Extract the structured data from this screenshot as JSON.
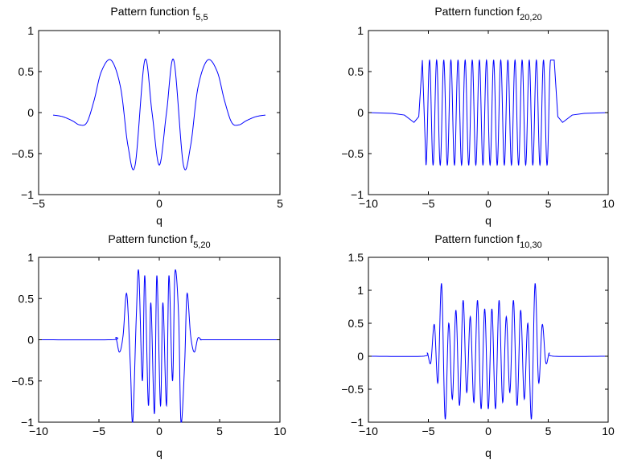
{
  "chart_data": [
    {
      "type": "line",
      "title_base": "Pattern function f",
      "title_sub": "5,5",
      "xlabel": "q",
      "ylabel": "",
      "xlim": [
        -5,
        5
      ],
      "ylim": [
        -1,
        1
      ],
      "xticks": [
        -5,
        0,
        5
      ],
      "yticks": [
        -1,
        -0.5,
        0,
        0.5,
        1
      ],
      "xtick_labels": [
        "−5",
        "0",
        "5"
      ],
      "ytick_labels": [
        "−1",
        "−0.5",
        "0",
        "0.5",
        "1"
      ],
      "series_color": "#0000ff",
      "x": [
        -4.4,
        -4.0,
        -3.6,
        -3.3,
        -3.0,
        -2.7,
        -2.4,
        -2.0,
        -1.6,
        -1.3,
        -1.0,
        -0.6,
        -0.3,
        0.0,
        0.3,
        0.6,
        1.0,
        1.3,
        1.6,
        2.0,
        2.4,
        2.7,
        3.0,
        3.3,
        3.6,
        4.0,
        4.4
      ],
      "y": [
        -0.03,
        -0.05,
        -0.1,
        -0.15,
        -0.12,
        0.15,
        0.5,
        0.64,
        0.3,
        -0.4,
        -0.64,
        0.64,
        0.0,
        -0.64,
        0.0,
        0.64,
        -0.64,
        -0.4,
        0.3,
        0.64,
        0.5,
        0.15,
        -0.12,
        -0.15,
        -0.1,
        -0.05,
        -0.03
      ]
    },
    {
      "type": "line",
      "title_base": "Pattern function f",
      "title_sub": "20,20",
      "xlabel": "q",
      "ylabel": "",
      "xlim": [
        -10,
        10
      ],
      "ylim": [
        -1,
        1
      ],
      "xticks": [
        -10,
        -5,
        0,
        5,
        10
      ],
      "yticks": [
        -1,
        -0.5,
        0,
        0.5,
        1
      ],
      "xtick_labels": [
        "−10",
        "−5",
        "0",
        "5",
        "10"
      ],
      "ytick_labels": [
        "−1",
        "−0.5",
        "0",
        "0.5",
        "1"
      ],
      "series_color": "#0000ff",
      "x": [
        -10,
        -8,
        -7,
        -6.2,
        -5.8,
        -5.5,
        -5.2,
        -4.9,
        4.9,
        5.2,
        5.5,
        5.8,
        6.2,
        7,
        8,
        10
      ],
      "y": [
        0.0,
        -0.01,
        -0.03,
        -0.12,
        -0.05,
        0.64,
        -0.64,
        0.64,
        0.64,
        -0.64,
        0.64,
        -0.05,
        -0.12,
        -0.03,
        -0.01,
        0.0
      ],
      "oscillation": {
        "from": -5.2,
        "to": 5.2,
        "cycles": 17.5,
        "amplitude": 0.64
      }
    },
    {
      "type": "line",
      "title_base": "Pattern function f",
      "title_sub": "5,20",
      "xlabel": "q",
      "ylabel": "",
      "xlim": [
        -10,
        10
      ],
      "ylim": [
        -1,
        1
      ],
      "xticks": [
        -10,
        -5,
        0,
        5,
        10
      ],
      "yticks": [
        -1,
        -0.5,
        0,
        0.5,
        1
      ],
      "xtick_labels": [
        "−10",
        "−5",
        "0",
        "5",
        "10"
      ],
      "ytick_labels": [
        "−1",
        "−0.5",
        "0",
        "0.5",
        "1"
      ],
      "series_color": "#0000ff",
      "x": [
        -10,
        -4,
        -3.6,
        -3.3,
        -3.0,
        -2.7,
        -2.4,
        -2.2,
        -1.9,
        -1.7,
        -1.4,
        -1.2,
        -0.9,
        -0.7,
        -0.4,
        -0.2,
        0.1,
        0.3,
        0.6,
        0.8,
        1.1,
        1.3,
        1.6,
        1.8,
        2.1,
        2.3,
        2.6,
        2.9,
        3.2,
        3.5,
        4,
        10
      ],
      "y": [
        0.0,
        0.0,
        0.02,
        -0.15,
        0.05,
        0.56,
        -0.3,
        -1.0,
        0.3,
        0.82,
        -0.5,
        0.78,
        -0.8,
        0.45,
        -0.9,
        0.78,
        -0.8,
        0.45,
        -0.8,
        0.78,
        -0.5,
        0.82,
        0.3,
        -1.0,
        -0.3,
        0.56,
        0.05,
        -0.15,
        0.02,
        0.0,
        0.0,
        0.0
      ]
    },
    {
      "type": "line",
      "title_base": "Pattern function f",
      "title_sub": "10,30",
      "xlabel": "q",
      "ylabel": "",
      "xlim": [
        -10,
        10
      ],
      "ylim": [
        -1,
        1.5
      ],
      "xticks": [
        -10,
        -5,
        0,
        5,
        10
      ],
      "yticks": [
        -1,
        -0.5,
        0,
        0.5,
        1,
        1.5
      ],
      "xtick_labels": [
        "−10",
        "−5",
        "0",
        "5",
        "10"
      ],
      "ytick_labels": [
        "−1",
        "−0.5",
        "0",
        "0.5",
        "1",
        "1.5"
      ],
      "series_color": "#0000ff",
      "x": [
        -10,
        -5.5,
        -5.1,
        -4.8,
        -4.5,
        -4.2,
        -3.9,
        -3.6,
        -3.3,
        -3.0,
        -2.7,
        -2.4,
        -2.1,
        -1.8,
        -1.5,
        -1.2,
        -0.9,
        -0.6,
        -0.3,
        0.0,
        0.3,
        0.6,
        0.9,
        1.2,
        1.5,
        1.8,
        2.1,
        2.4,
        2.7,
        3.0,
        3.3,
        3.6,
        3.9,
        4.2,
        4.5,
        4.8,
        5.1,
        5.5,
        10
      ],
      "y": [
        0.0,
        0.0,
        0.05,
        -0.1,
        0.48,
        -0.4,
        1.1,
        -0.95,
        0.5,
        -0.65,
        0.7,
        -0.75,
        0.85,
        -0.55,
        0.6,
        -0.7,
        0.85,
        -0.8,
        0.72,
        -0.8,
        0.72,
        -0.8,
        0.85,
        -0.7,
        0.6,
        -0.55,
        0.85,
        -0.75,
        0.7,
        -0.65,
        0.5,
        -0.95,
        1.1,
        -0.4,
        0.48,
        -0.1,
        0.05,
        0.0,
        0.0
      ]
    }
  ]
}
